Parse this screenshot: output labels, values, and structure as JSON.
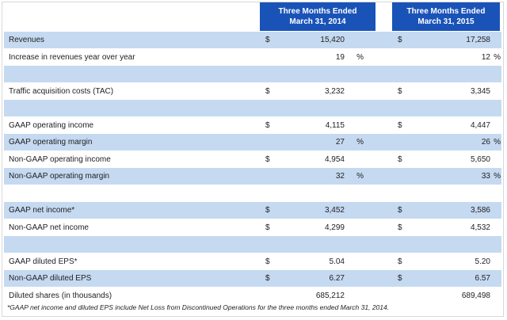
{
  "header": {
    "col1_line1": "Three Months Ended",
    "col1_line2": "March 31, 2014",
    "col2_line1": "Three Months Ended",
    "col2_line2": "March 31, 2015",
    "color": "#1a53b8"
  },
  "rows": [
    {
      "label": "Revenues",
      "dollar1": "$",
      "v1": "15,420",
      "p1": "",
      "dollar2": "$",
      "v2": "17,258",
      "p2": ""
    },
    {
      "label": "Increase in revenues year over year",
      "dollar1": "",
      "v1": "19",
      "p1": "%",
      "dollar2": "",
      "v2": "12",
      "p2": "%"
    },
    {
      "label": "",
      "dollar1": "",
      "v1": "",
      "p1": "",
      "dollar2": "",
      "v2": "",
      "p2": ""
    },
    {
      "label": "Traffic acquisition costs (TAC)",
      "dollar1": "$",
      "v1": "3,232",
      "p1": "",
      "dollar2": "$",
      "v2": "3,345",
      "p2": ""
    },
    {
      "label": "",
      "dollar1": "",
      "v1": "",
      "p1": "",
      "dollar2": "",
      "v2": "",
      "p2": ""
    },
    {
      "label": "GAAP operating income",
      "dollar1": "$",
      "v1": "4,115",
      "p1": "",
      "dollar2": "$",
      "v2": "4,447",
      "p2": ""
    },
    {
      "label": "GAAP operating margin",
      "dollar1": "",
      "v1": "27",
      "p1": "%",
      "dollar2": "",
      "v2": "26",
      "p2": "%"
    },
    {
      "label": "Non-GAAP operating income",
      "dollar1": "$",
      "v1": "4,954",
      "p1": "",
      "dollar2": "$",
      "v2": "5,650",
      "p2": ""
    },
    {
      "label": "Non-GAAP operating margin",
      "dollar1": "",
      "v1": "32",
      "p1": "%",
      "dollar2": "",
      "v2": "33",
      "p2": "%"
    },
    {
      "label": "",
      "dollar1": "",
      "v1": "",
      "p1": "",
      "dollar2": "",
      "v2": "",
      "p2": ""
    },
    {
      "label": "GAAP net income*",
      "dollar1": "$",
      "v1": "3,452",
      "p1": "",
      "dollar2": "$",
      "v2": "3,586",
      "p2": ""
    },
    {
      "label": "Non-GAAP net income",
      "dollar1": "$",
      "v1": "4,299",
      "p1": "",
      "dollar2": "$",
      "v2": "4,532",
      "p2": ""
    },
    {
      "label": "",
      "dollar1": "",
      "v1": "",
      "p1": "",
      "dollar2": "",
      "v2": "",
      "p2": ""
    },
    {
      "label": "GAAP diluted EPS*",
      "dollar1": "$",
      "v1": "5.04",
      "p1": "",
      "dollar2": "$",
      "v2": "5.20",
      "p2": ""
    },
    {
      "label": "Non-GAAP diluted EPS",
      "dollar1": "$",
      "v1": "6.27",
      "p1": "",
      "dollar2": "$",
      "v2": "6.57",
      "p2": ""
    },
    {
      "label": "Diluted shares (in thousands)",
      "dollar1": "",
      "v1": "685,212",
      "p1": "",
      "dollar2": "",
      "v2": "689,498",
      "p2": ""
    }
  ],
  "footnote": "*GAAP net income and diluted EPS include Net Loss from Discontinued Operations for the three months ended March 31, 2014.",
  "colors": {
    "stripe": "#c5d9f1",
    "white": "#ffffff"
  }
}
